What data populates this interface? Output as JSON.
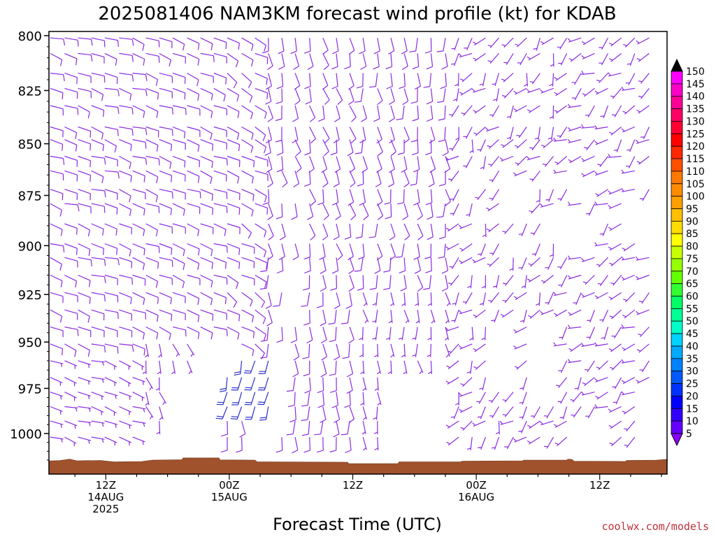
{
  "chart_data": {
    "type": "wind_barb_time_height",
    "title": "2025081406 NAM3KM forecast wind profile (kt) for KDAB",
    "xlabel": "Forecast Time (UTC)",
    "ylabel": "",
    "y_axis": {
      "unit": "hPa",
      "ylim": [
        1020,
        795
      ],
      "ticks": [
        800,
        825,
        850,
        875,
        900,
        925,
        950,
        975,
        1000
      ]
    },
    "x_axis": {
      "unit": "forecast hour",
      "xlim": [
        0,
        60
      ],
      "ticks": [
        {
          "hour": 6,
          "lines": [
            "12Z",
            "14AUG",
            "2025"
          ]
        },
        {
          "hour": 18,
          "lines": [
            "00Z",
            "15AUG"
          ]
        },
        {
          "hour": 30,
          "lines": [
            "12Z"
          ]
        },
        {
          "hour": 42,
          "lines": [
            "00Z",
            "16AUG"
          ]
        },
        {
          "hour": 54,
          "lines": [
            "12Z"
          ]
        }
      ]
    },
    "run": "2025081406",
    "model": "NAM3KM",
    "station": "KDAB",
    "barb_rows_hpa": [
      801,
      808,
      817,
      824,
      832,
      842,
      848,
      856,
      863,
      872,
      879,
      889,
      899,
      906,
      915,
      924,
      933,
      942,
      951,
      960,
      969,
      977,
      985,
      993,
      1002
    ],
    "barb_cols_fhr": [
      0.6,
      2,
      3.3,
      4.6,
      5.9,
      7.3,
      8.6,
      9.9,
      11.2,
      12.5,
      13.9,
      15.2,
      16.5,
      17.8,
      19.2,
      20.5,
      21.8,
      23.1,
      24.4,
      25.8,
      27.1,
      28.4,
      29.7,
      31,
      32.4,
      33.7,
      35,
      36.3,
      37.6,
      39,
      40.3,
      41.6,
      42.9,
      44.2,
      45.6,
      46.9,
      48.2,
      49.5,
      50.8,
      52.2,
      53.5,
      54.8,
      56.1,
      57.4,
      58.8
    ],
    "wind_regimes": [
      {
        "hours": [
          0,
          8
        ],
        "levels_hpa": [
          800,
          1005
        ],
        "direction": "easterly",
        "speed_kt": "5-10"
      },
      {
        "hours": [
          9,
          21
        ],
        "levels_hpa": [
          800,
          955
        ],
        "direction": "easterly",
        "speed_kt": "5-10"
      },
      {
        "hours": [
          18,
          22
        ],
        "levels_hpa": [
          955,
          985
        ],
        "direction": "southerly",
        "speed_kt": "10-20"
      },
      {
        "hours": [
          22,
          40
        ],
        "levels_hpa": [
          800,
          1005
        ],
        "direction": "southeasterly to southerly",
        "speed_kt": "5-10"
      },
      {
        "hours": [
          40,
          60
        ],
        "levels_hpa": [
          800,
          1010
        ],
        "direction": "variable / southerly to southwesterly",
        "speed_kt": "0-10"
      }
    ],
    "terrain": {
      "color": "#a0522d",
      "surface_hpa_range": [
        1013,
        1016
      ]
    },
    "colorbar": {
      "unit": "kt",
      "labels": [
        150,
        145,
        140,
        135,
        130,
        125,
        120,
        115,
        110,
        105,
        100,
        95,
        90,
        85,
        80,
        75,
        70,
        65,
        60,
        55,
        50,
        45,
        40,
        35,
        30,
        25,
        20,
        15,
        10,
        5
      ],
      "colors": [
        "#ff00ff",
        "#ff00c8",
        "#ff0096",
        "#ff0064",
        "#ff0032",
        "#ff0000",
        "#ff2800",
        "#ff5000",
        "#ff7800",
        "#ff8c00",
        "#ffa000",
        "#ffbe00",
        "#ffdc00",
        "#ffff00",
        "#c8ff00",
        "#96ff00",
        "#64ff00",
        "#32ff32",
        "#00ff64",
        "#00ff96",
        "#00ffc8",
        "#00d2ff",
        "#00aaff",
        "#0082ff",
        "#005aff",
        "#0032ff",
        "#0000ff",
        "#3200ff",
        "#6400ff",
        "#8c00ff"
      ]
    },
    "barb_colors": {
      "slow": "#8a2be2",
      "faster": "#2a30c8"
    }
  },
  "credit": "coolwx.com/models"
}
